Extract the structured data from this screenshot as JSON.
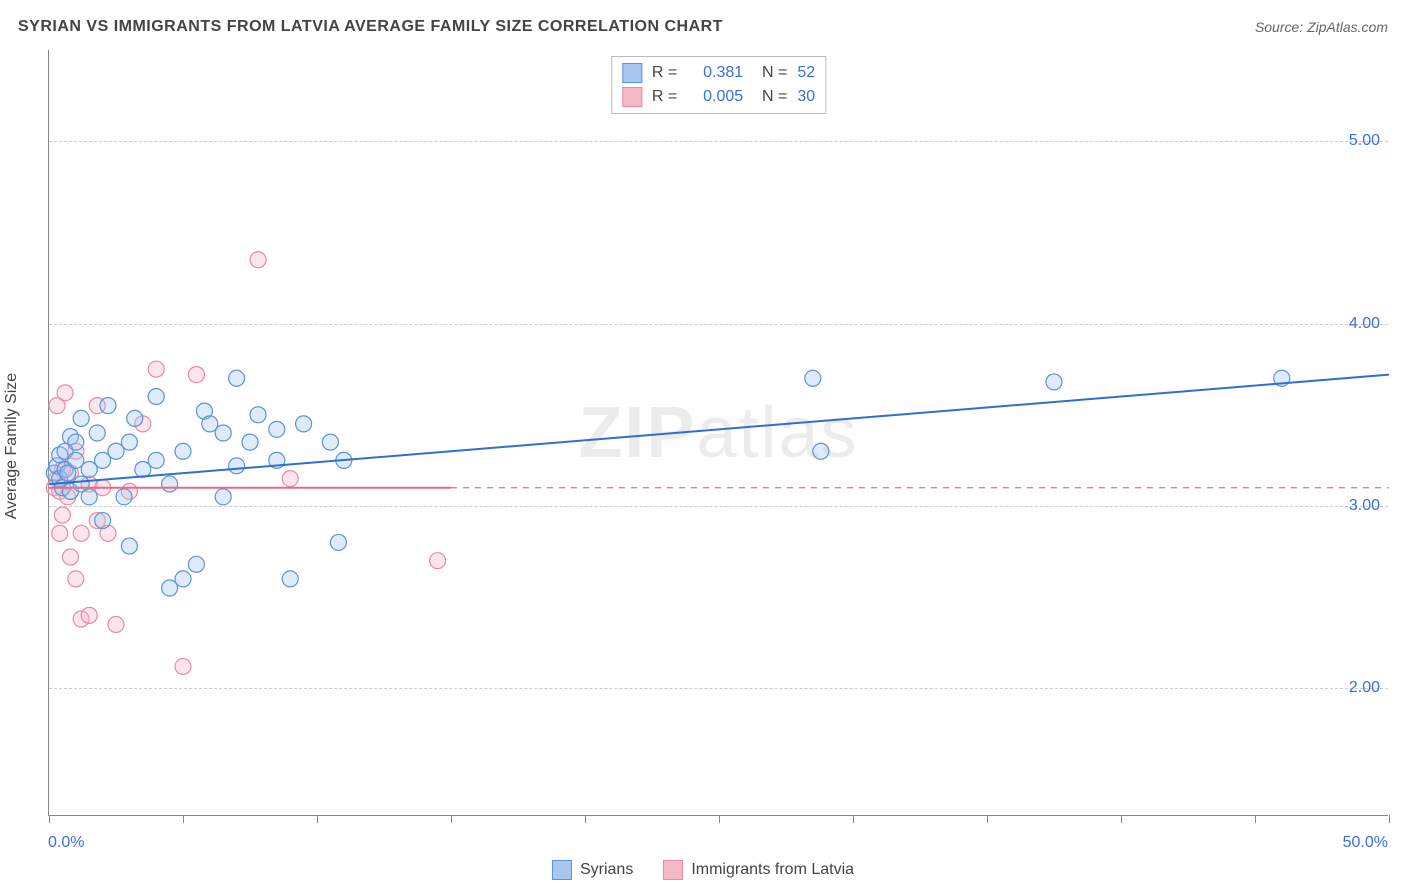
{
  "title": "SYRIAN VS IMMIGRANTS FROM LATVIA AVERAGE FAMILY SIZE CORRELATION CHART",
  "source_label": "Source: ZipAtlas.com",
  "watermark": "ZIPatlas",
  "y_axis_title": "Average Family Size",
  "chart": {
    "type": "scatter",
    "background_color": "#ffffff",
    "grid_color": "#cccccc",
    "axis_color": "#888888",
    "xlim": [
      0,
      50
    ],
    "ylim": [
      1.3,
      5.5
    ],
    "x_ticks": [
      0,
      5,
      10,
      15,
      20,
      25,
      30,
      35,
      40,
      45,
      50
    ],
    "x_tick_labels_shown": {
      "0": "0.0%",
      "50": "50.0%"
    },
    "y_ticks": [
      2.0,
      3.0,
      4.0,
      5.0
    ],
    "y_tick_labels": [
      "2.00",
      "3.00",
      "4.00",
      "5.00"
    ],
    "marker_radius": 8,
    "marker_fill_opacity": 0.35,
    "marker_stroke_width": 1.2,
    "series": [
      {
        "name": "Syrians",
        "color_fill": "#a7c7f0",
        "color_stroke": "#5a93d8",
        "R": "0.381",
        "N": "52",
        "trend": {
          "x1": 0,
          "y1": 3.12,
          "x2": 50,
          "y2": 3.72,
          "dash": "none",
          "width": 2,
          "color": "#2f6fd0"
        },
        "points": [
          [
            0.2,
            3.18
          ],
          [
            0.3,
            3.22
          ],
          [
            0.4,
            3.15
          ],
          [
            0.4,
            3.28
          ],
          [
            0.5,
            3.1
          ],
          [
            0.6,
            3.2
          ],
          [
            0.6,
            3.3
          ],
          [
            0.7,
            3.18
          ],
          [
            0.8,
            3.08
          ],
          [
            0.8,
            3.38
          ],
          [
            1.0,
            3.25
          ],
          [
            1.0,
            3.35
          ],
          [
            1.2,
            3.12
          ],
          [
            1.2,
            3.48
          ],
          [
            1.5,
            3.2
          ],
          [
            1.5,
            3.05
          ],
          [
            1.8,
            3.4
          ],
          [
            2.0,
            3.25
          ],
          [
            2.0,
            2.92
          ],
          [
            2.2,
            3.55
          ],
          [
            2.5,
            3.3
          ],
          [
            2.8,
            3.05
          ],
          [
            3.0,
            3.35
          ],
          [
            3.0,
            2.78
          ],
          [
            3.2,
            3.48
          ],
          [
            3.5,
            3.2
          ],
          [
            4.0,
            3.25
          ],
          [
            4.0,
            3.6
          ],
          [
            4.5,
            3.12
          ],
          [
            4.5,
            2.55
          ],
          [
            5.0,
            3.3
          ],
          [
            5.0,
            2.6
          ],
          [
            5.5,
            2.68
          ],
          [
            5.8,
            3.52
          ],
          [
            6.0,
            3.45
          ],
          [
            6.5,
            3.4
          ],
          [
            6.5,
            3.05
          ],
          [
            7.0,
            3.22
          ],
          [
            7.0,
            3.7
          ],
          [
            7.5,
            3.35
          ],
          [
            7.8,
            3.5
          ],
          [
            8.5,
            3.25
          ],
          [
            8.5,
            3.42
          ],
          [
            9.0,
            2.6
          ],
          [
            9.5,
            3.45
          ],
          [
            10.5,
            3.35
          ],
          [
            10.8,
            2.8
          ],
          [
            11.0,
            3.25
          ],
          [
            28.5,
            3.7
          ],
          [
            28.8,
            3.3
          ],
          [
            37.5,
            3.68
          ],
          [
            46.0,
            3.7
          ]
        ]
      },
      {
        "name": "Immigrants from Latvia",
        "color_fill": "#f5b8c5",
        "color_stroke": "#e88ba1",
        "R": "0.005",
        "N": "30",
        "trend_solid": {
          "x1": 0,
          "y1": 3.1,
          "x2": 15,
          "y2": 3.1,
          "dash": "none",
          "width": 2,
          "color": "#e86a88"
        },
        "trend_dash": {
          "x1": 15,
          "y1": 3.1,
          "x2": 50,
          "y2": 3.1,
          "dash": "6,6",
          "width": 1.2,
          "color": "#e86a88"
        },
        "points": [
          [
            0.2,
            3.1
          ],
          [
            0.3,
            3.15
          ],
          [
            0.3,
            3.55
          ],
          [
            0.4,
            3.08
          ],
          [
            0.4,
            2.85
          ],
          [
            0.5,
            3.2
          ],
          [
            0.5,
            2.95
          ],
          [
            0.6,
            3.62
          ],
          [
            0.7,
            3.05
          ],
          [
            0.8,
            2.72
          ],
          [
            0.8,
            3.18
          ],
          [
            1.0,
            2.6
          ],
          [
            1.0,
            3.3
          ],
          [
            1.2,
            2.85
          ],
          [
            1.2,
            2.38
          ],
          [
            1.5,
            2.4
          ],
          [
            1.5,
            3.12
          ],
          [
            1.8,
            2.92
          ],
          [
            1.8,
            3.55
          ],
          [
            2.0,
            3.1
          ],
          [
            2.2,
            2.85
          ],
          [
            2.5,
            2.35
          ],
          [
            3.0,
            3.08
          ],
          [
            3.5,
            3.45
          ],
          [
            4.0,
            3.75
          ],
          [
            5.0,
            2.12
          ],
          [
            5.5,
            3.72
          ],
          [
            7.8,
            4.35
          ],
          [
            9.0,
            3.15
          ],
          [
            14.5,
            2.7
          ]
        ]
      }
    ]
  },
  "legend_top": {
    "r_label": "R =",
    "n_label": "N ="
  },
  "legend_bottom": {
    "items": [
      "Syrians",
      "Immigrants from Latvia"
    ]
  }
}
